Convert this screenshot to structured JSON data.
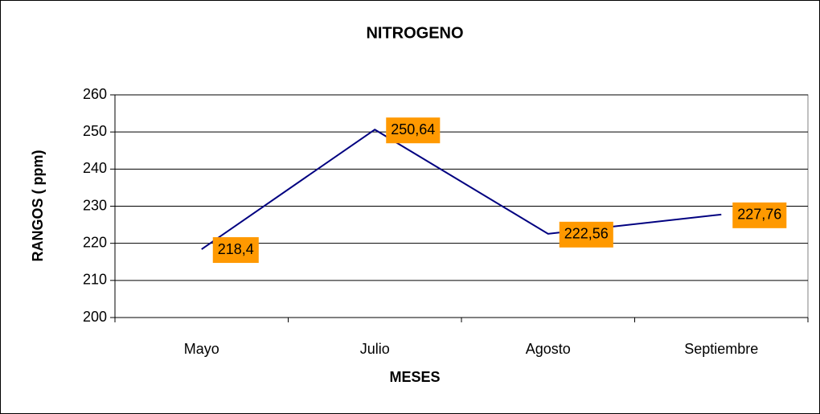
{
  "chart_data": {
    "type": "line",
    "title": "NITROGENO",
    "x_label": "MESES",
    "y_label": "RANGOS ( ppm)",
    "categories": [
      "Mayo",
      "Julio",
      "Agosto",
      "Septiembre"
    ],
    "series": [
      {
        "name": "NITROGENO",
        "color": "#000080",
        "values": [
          218.4,
          250.64,
          222.56,
          227.76
        ],
        "value_labels": [
          "218,4",
          "250,64",
          "222,56",
          "227,76"
        ]
      }
    ],
    "label_color": "#ff9900",
    "ylim": [
      200,
      260
    ],
    "yticks": [
      200,
      210,
      220,
      230,
      240,
      250,
      260
    ],
    "grid": true
  }
}
